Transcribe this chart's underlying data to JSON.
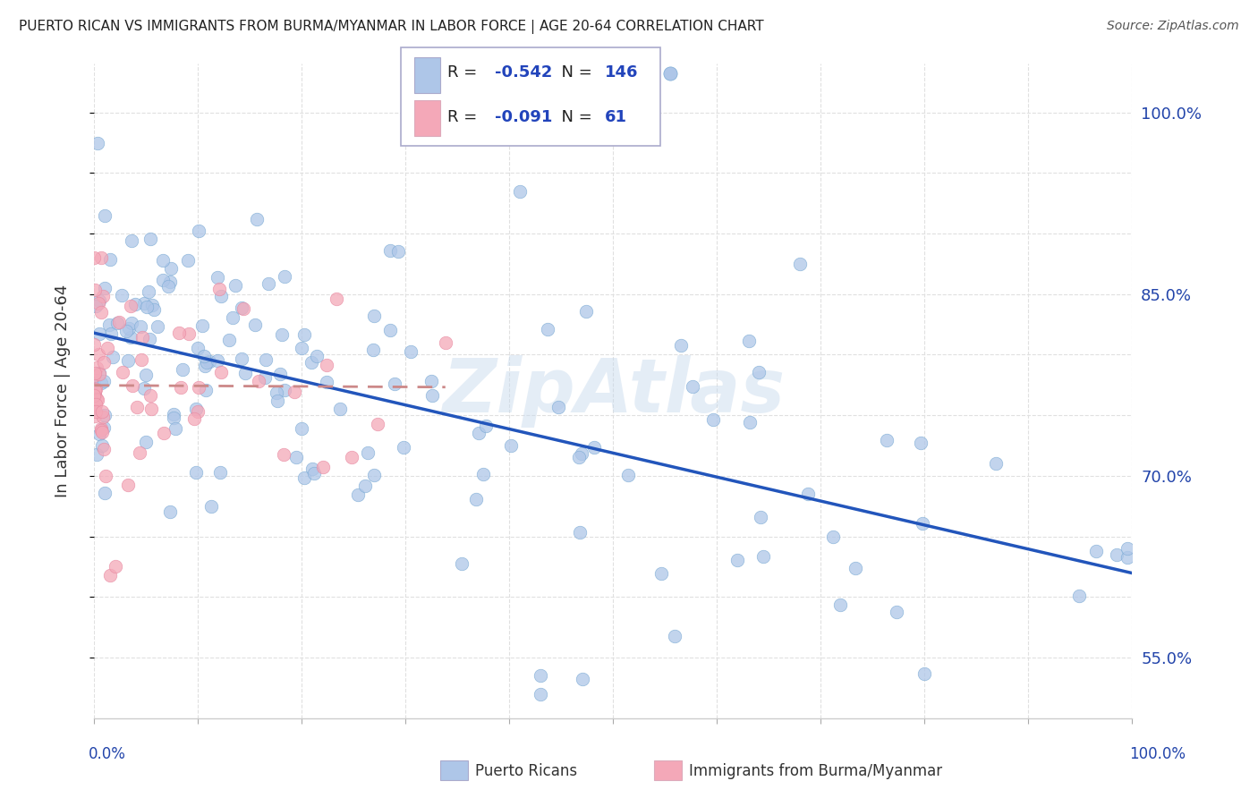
{
  "title": "PUERTO RICAN VS IMMIGRANTS FROM BURMA/MYANMAR IN LABOR FORCE | AGE 20-64 CORRELATION CHART",
  "source": "Source: ZipAtlas.com",
  "ylabel": "In Labor Force | Age 20-64",
  "ylim": [
    0.5,
    1.04
  ],
  "xlim": [
    0.0,
    1.0
  ],
  "blue_R": -0.542,
  "blue_N": 146,
  "pink_R": -0.091,
  "pink_N": 61,
  "blue_color": "#aec6e8",
  "pink_color": "#f4a8b8",
  "blue_edge_color": "#7aaad4",
  "pink_edge_color": "#e888a0",
  "blue_line_color": "#2255bb",
  "pink_line_color": "#cc8888",
  "watermark": "ZipAtlas",
  "legend_label_blue": "Puerto Ricans",
  "legend_label_pink": "Immigrants from Burma/Myanmar",
  "background_color": "#ffffff",
  "grid_color": "#e0e0e0",
  "ytick_vals": [
    0.55,
    0.7,
    0.85,
    1.0
  ],
  "ytick_labels": [
    "55.0%",
    "70.0%",
    "85.0%",
    "100.0%"
  ],
  "ytick_minor": [
    0.55,
    0.6,
    0.65,
    0.7,
    0.75,
    0.8,
    0.85,
    0.9,
    0.95,
    1.0
  ],
  "xtick_vals": [
    0.0,
    0.1,
    0.2,
    0.3,
    0.4,
    0.5,
    0.6,
    0.7,
    0.8,
    0.9,
    1.0
  ]
}
